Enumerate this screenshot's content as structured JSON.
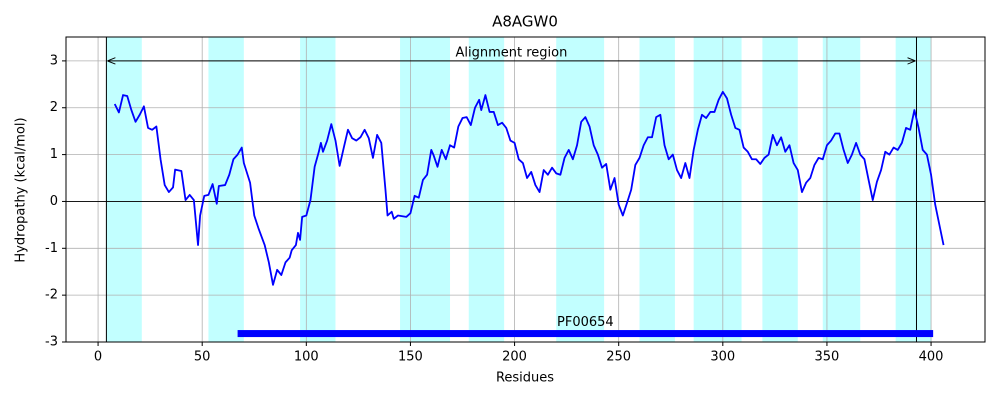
{
  "chart_data": {
    "type": "line",
    "title": "A8AGW0",
    "x_label": "Residues",
    "y_label": "Hydropathy (kcal/mol)",
    "xlim": [
      -15.4,
      425.9
    ],
    "ylim": [
      -3,
      3.51
    ],
    "xticks": [
      0,
      50,
      100,
      150,
      200,
      250,
      300,
      350,
      400
    ],
    "yticks": [
      -3,
      -2,
      -1,
      0,
      1,
      2,
      3
    ],
    "grid": true,
    "baseline": 0,
    "x": [
      8,
      10,
      12,
      14,
      16,
      18,
      20,
      22,
      24,
      26,
      28,
      30,
      32,
      34,
      36,
      37,
      40,
      42,
      44,
      46,
      48,
      49,
      51,
      53,
      55,
      57,
      58,
      61,
      63,
      65,
      67,
      69,
      70,
      73,
      75,
      77,
      80,
      82,
      84,
      86,
      88,
      90,
      92,
      93,
      95,
      96,
      97,
      98,
      100,
      102,
      104,
      106,
      107,
      108,
      110,
      112,
      114,
      116,
      118,
      120,
      122,
      124,
      126,
      128,
      130,
      132,
      134,
      136,
      138,
      139,
      141,
      142,
      144,
      148,
      150,
      152,
      154,
      156,
      158,
      160,
      161,
      163,
      165,
      167,
      169,
      171,
      173,
      175,
      177,
      179,
      181,
      183,
      184,
      186,
      188,
      190,
      192,
      194,
      196,
      198,
      200,
      202,
      204,
      206,
      208,
      210,
      212,
      214,
      216,
      218,
      220,
      222,
      224,
      226,
      228,
      230,
      232,
      234,
      236,
      238,
      240,
      242,
      244,
      246,
      248,
      250,
      252,
      254,
      256,
      258,
      260,
      262,
      264,
      266,
      268,
      270,
      272,
      274,
      276,
      278,
      280,
      282,
      284,
      286,
      288,
      290,
      292,
      294,
      296,
      298,
      300,
      302,
      304,
      306,
      308,
      310,
      312,
      314,
      316,
      318,
      320,
      322,
      324,
      326,
      328,
      330,
      332,
      334,
      336,
      338,
      340,
      342,
      344,
      346,
      348,
      350,
      352,
      354,
      356,
      358,
      360,
      362,
      364,
      366,
      368,
      370,
      372,
      374,
      376,
      378,
      380,
      382,
      384,
      386,
      388,
      390,
      392,
      394,
      396,
      398,
      400,
      402,
      404,
      406
    ],
    "series": [
      {
        "color": "#0000ff",
        "values": [
          2.08,
          1.9,
          2.27,
          2.25,
          1.95,
          1.7,
          1.85,
          2.03,
          1.57,
          1.53,
          1.6,
          0.9,
          0.35,
          0.2,
          0.3,
          0.68,
          0.65,
          0.03,
          0.14,
          0.03,
          -0.93,
          -0.3,
          0.12,
          0.14,
          0.37,
          -0.05,
          0.33,
          0.35,
          0.57,
          0.9,
          1.0,
          1.15,
          0.82,
          0.4,
          -0.3,
          -0.57,
          -0.93,
          -1.3,
          -1.78,
          -1.46,
          -1.57,
          -1.3,
          -1.2,
          -1.04,
          -0.93,
          -0.67,
          -0.82,
          -0.33,
          -0.3,
          0.03,
          0.74,
          1.06,
          1.25,
          1.06,
          1.3,
          1.65,
          1.3,
          0.76,
          1.15,
          1.53,
          1.35,
          1.3,
          1.37,
          1.53,
          1.35,
          0.93,
          1.42,
          1.25,
          0.25,
          -0.3,
          -0.22,
          -0.37,
          -0.3,
          -0.33,
          -0.25,
          0.12,
          0.08,
          0.46,
          0.57,
          1.1,
          1.0,
          0.74,
          1.1,
          0.9,
          1.2,
          1.15,
          1.6,
          1.78,
          1.8,
          1.63,
          2.0,
          2.17,
          1.95,
          2.27,
          1.91,
          1.91,
          1.63,
          1.68,
          1.57,
          1.3,
          1.25,
          0.9,
          0.82,
          0.5,
          0.63,
          0.35,
          0.2,
          0.67,
          0.57,
          0.72,
          0.6,
          0.57,
          0.93,
          1.1,
          0.9,
          1.2,
          1.7,
          1.8,
          1.6,
          1.2,
          1.0,
          0.72,
          0.8,
          0.25,
          0.5,
          -0.07,
          -0.3,
          -0.03,
          0.25,
          0.78,
          0.93,
          1.2,
          1.37,
          1.37,
          1.8,
          1.85,
          1.2,
          0.9,
          1.0,
          0.67,
          0.5,
          0.82,
          0.5,
          1.1,
          1.53,
          1.85,
          1.78,
          1.91,
          1.91,
          2.17,
          2.34,
          2.2,
          1.85,
          1.57,
          1.53,
          1.15,
          1.06,
          0.9,
          0.9,
          0.8,
          0.93,
          1.0,
          1.42,
          1.2,
          1.37,
          1.06,
          1.2,
          0.82,
          0.67,
          0.2,
          0.4,
          0.5,
          0.78,
          0.93,
          0.9,
          1.2,
          1.3,
          1.45,
          1.45,
          1.1,
          0.82,
          1.0,
          1.25,
          1.0,
          0.9,
          0.46,
          0.03,
          0.42,
          0.67,
          1.06,
          1.0,
          1.15,
          1.1,
          1.25,
          1.57,
          1.53,
          1.95,
          1.57,
          1.1,
          1.0,
          0.57,
          -0.07,
          -0.5,
          -0.93
        ]
      }
    ],
    "regions": [
      [
        4,
        21
      ],
      [
        53,
        70
      ],
      [
        97,
        114
      ],
      [
        145,
        169
      ],
      [
        178,
        195
      ],
      [
        220,
        243
      ],
      [
        260,
        277
      ],
      [
        286,
        309
      ],
      [
        319,
        336
      ],
      [
        348,
        366
      ],
      [
        383,
        400
      ]
    ],
    "region_color": "#c2ffff",
    "alignment_region": {
      "label": "Alignment region",
      "start": 4,
      "end": 393,
      "y": 3
    },
    "domains": [
      {
        "label": "PF00654",
        "start": 67,
        "end": 401,
        "y": -2.82,
        "color": "#0000ff"
      }
    ]
  }
}
